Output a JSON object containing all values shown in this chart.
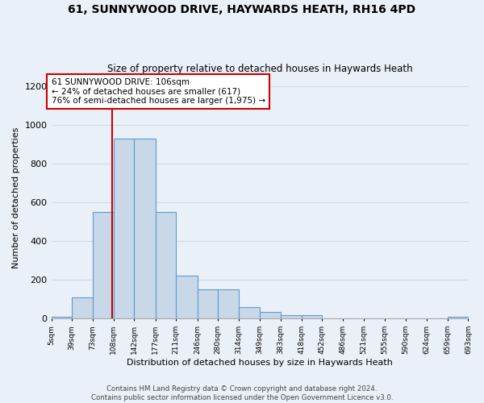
{
  "title": "61, SUNNYWOOD DRIVE, HAYWARDS HEATH, RH16 4PD",
  "subtitle": "Size of property relative to detached houses in Haywards Heath",
  "xlabel": "Distribution of detached houses by size in Haywards Heath",
  "ylabel": "Number of detached properties",
  "bin_edges": [
    5,
    39,
    73,
    108,
    142,
    177,
    211,
    246,
    280,
    314,
    349,
    383,
    418,
    452,
    486,
    521,
    555,
    590,
    624,
    659,
    693
  ],
  "bin_heights": [
    10,
    110,
    550,
    930,
    930,
    550,
    220,
    150,
    150,
    60,
    35,
    20,
    20,
    0,
    0,
    0,
    0,
    0,
    0,
    10
  ],
  "bar_color": "#c8d8e8",
  "bar_edge_color": "#5b9bd5",
  "grid_color": "#d0d8e8",
  "property_size": 106,
  "vline_color": "#cc0000",
  "annotation_line1": "61 SUNNYWOOD DRIVE: 106sqm",
  "annotation_line2": "← 24% of detached houses are smaller (617)",
  "annotation_line3": "76% of semi-detached houses are larger (1,975) →",
  "annotation_box_color": "#ffffff",
  "annotation_box_edge_color": "#cc0000",
  "ylim": [
    0,
    1250
  ],
  "yticks": [
    0,
    200,
    400,
    600,
    800,
    1000,
    1200
  ],
  "footer_text": "Contains HM Land Registry data © Crown copyright and database right 2024.\nContains public sector information licensed under the Open Government Licence v3.0.",
  "background_color": "#eaf0f8"
}
